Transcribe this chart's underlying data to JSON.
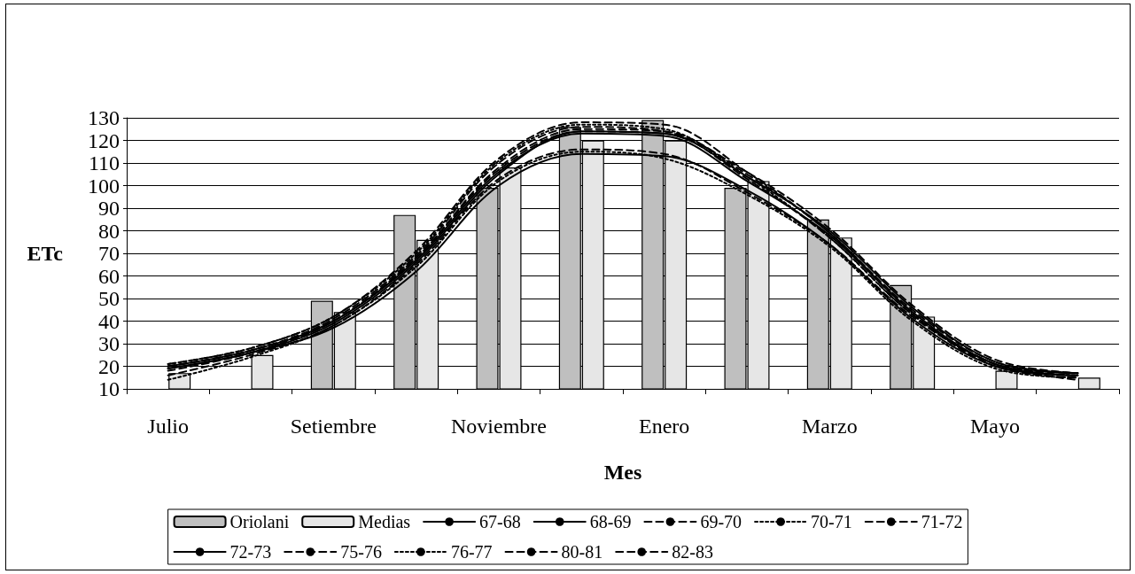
{
  "chart_data": {
    "type": "bar",
    "xlabel": "Mes",
    "ylabel": "ETc",
    "categories": [
      "Julio",
      null,
      "Setiembre",
      null,
      "Noviembre",
      null,
      "Enero",
      null,
      "Marzo",
      null,
      "Mayo",
      null
    ],
    "ylim": [
      10,
      130
    ],
    "yticks": [
      10,
      20,
      30,
      40,
      50,
      60,
      70,
      80,
      90,
      100,
      110,
      120,
      130
    ],
    "grid": "y",
    "legend": "bottom",
    "marker": "none",
    "series": [
      {
        "name": "Oriolani",
        "color": "#bfbfbf",
        "values": [
          null,
          null,
          49,
          87,
          99,
          126,
          129,
          99,
          85,
          56,
          null,
          null
        ]
      },
      {
        "name": "Medias",
        "color": "#e6e6e6",
        "values": [
          17,
          25,
          44,
          76,
          108,
          120,
          120,
          102,
          77,
          42,
          18,
          15
        ]
      },
      {
        "name": "67-68",
        "type": "line",
        "color": "#000000",
        "line_style": "solid",
        "values": [
          20,
          27,
          40,
          67,
          106,
          123,
          122,
          102,
          78,
          44,
          21,
          16
        ]
      },
      {
        "name": "68-69",
        "type": "line",
        "color": "#000000",
        "line_style": "solid",
        "values": [
          19,
          26,
          39,
          66,
          105,
          124,
          123,
          104,
          80,
          46,
          22,
          17
        ]
      },
      {
        "name": "69-70",
        "type": "line",
        "color": "#000000",
        "line_style": "dashed",
        "values": [
          20,
          27,
          41,
          69,
          110,
          126,
          124,
          103,
          77,
          43,
          20,
          15
        ]
      },
      {
        "name": "70-71",
        "type": "line",
        "color": "#000000",
        "line_style": "dotted",
        "values": [
          21,
          28,
          42,
          70,
          111,
          127,
          125,
          104,
          77,
          43,
          21,
          16
        ]
      },
      {
        "name": "71-72",
        "type": "line",
        "color": "#000000",
        "line_style": "dashed",
        "values": [
          21,
          28,
          42,
          71,
          112,
          128,
          127,
          106,
          79,
          45,
          22,
          17
        ]
      },
      {
        "name": "72-73",
        "type": "line",
        "color": "#000000",
        "line_style": "solid",
        "values": [
          19,
          26,
          37,
          62,
          100,
          114,
          113,
          98,
          74,
          41,
          20,
          16
        ]
      },
      {
        "name": "75-76",
        "type": "line",
        "color": "#000000",
        "line_style": "dashed",
        "values": [
          20,
          27,
          40,
          68,
          108,
          125,
          124,
          105,
          79,
          44,
          21,
          17
        ]
      },
      {
        "name": "76-77",
        "type": "line",
        "color": "#000000",
        "line_style": "dotted",
        "values": [
          14,
          24,
          38,
          64,
          102,
          115,
          112,
          96,
          73,
          40,
          19,
          15
        ]
      },
      {
        "name": "80-81",
        "type": "line",
        "color": "#000000",
        "line_style": "dashed",
        "values": [
          18,
          26,
          40,
          68,
          107,
          124,
          123,
          106,
          81,
          47,
          23,
          17
        ]
      },
      {
        "name": "82-83",
        "type": "line",
        "color": "#000000",
        "line_style": "dashed",
        "values": [
          16,
          25,
          38,
          65,
          103,
          116,
          114,
          97,
          74,
          42,
          21,
          14
        ]
      }
    ]
  }
}
